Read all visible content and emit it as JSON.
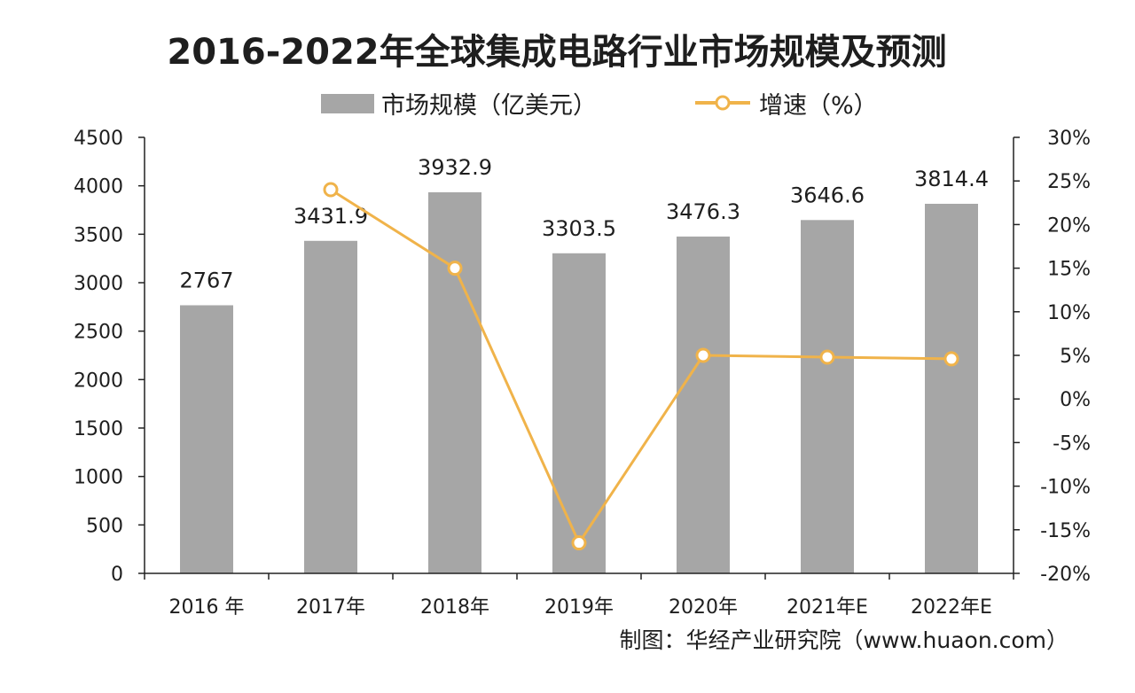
{
  "chart_data": {
    "type": "bar",
    "title": "2016-2022年全球集成电路行业市场规模及预测",
    "categories": [
      "2016 年",
      "2017年",
      "2018年",
      "2019年",
      "2020年",
      "2021年E",
      "2022年E"
    ],
    "series": [
      {
        "name": "市场规模（亿美元）",
        "type": "bar",
        "axis": "left",
        "values": [
          2767,
          3431.9,
          3932.9,
          3303.5,
          3476.3,
          3646.6,
          3814.4
        ],
        "labels": [
          "2767",
          "3431.9",
          "3932.9",
          "3303.5",
          "3476.3",
          "3646.6",
          "3814.4"
        ]
      },
      {
        "name": "增速（%）",
        "type": "line",
        "axis": "right",
        "values": [
          null,
          24.0,
          15.0,
          -16.5,
          5.0,
          4.8,
          4.6
        ]
      }
    ],
    "y_left": {
      "min": 0,
      "max": 4500,
      "step": 500,
      "ticks": [
        "0",
        "500",
        "1000",
        "1500",
        "2000",
        "2500",
        "3000",
        "3500",
        "4000",
        "4500"
      ]
    },
    "y_right": {
      "min": -20,
      "max": 30,
      "step": 5,
      "ticks": [
        "-20%",
        "-15%",
        "-10%",
        "-5%",
        "0%",
        "5%",
        "10%",
        "15%",
        "20%",
        "25%",
        "30%"
      ]
    },
    "legend_position": "top-center",
    "grid": false,
    "source": "制图：华经产业研究院（www.huaon.com）"
  },
  "colors": {
    "bar": "#a6a6a6",
    "line": "#f0b34a",
    "marker_fill": "#ffffff",
    "axis": "#222222",
    "text": "#1e1e1e"
  }
}
